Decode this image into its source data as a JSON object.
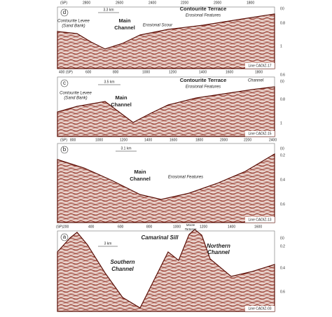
{
  "panels": [
    {
      "letter": "d",
      "top_axis": [
        "(SP)",
        "2800",
        "2600",
        "2400",
        "2200",
        "2000",
        "1800"
      ],
      "right_axis": [
        "(s)",
        "0.8",
        "1"
      ],
      "scale": "3.3 km",
      "line": "Line CADIZ-17",
      "title": "Contourite Terrace",
      "features": "Erosional Features",
      "levee": [
        "Contourite Levee",
        "(Sand Bank)"
      ],
      "channel": [
        "Main",
        "Channel"
      ],
      "scour": "Erosional Scour"
    },
    {
      "letter": "c",
      "top_axis": [
        "400 (SP)",
        "600",
        "800",
        "1000",
        "1200",
        "1400",
        "1600",
        "1800"
      ],
      "right_axis": [
        "0.6",
        "(s)",
        "0.8",
        "1"
      ],
      "scale": "3.5 km",
      "line": "Line CADIZ-15",
      "title": "Contourite Terrace",
      "features": "Erosional Features",
      "levee": [
        "Contourite Levee",
        "(Sand Bank)"
      ],
      "channel": [
        "Main",
        "Channel"
      ],
      "small_channel": "Channel"
    },
    {
      "letter": "b",
      "top_axis": [
        "(SP)",
        "800",
        "1000",
        "1200",
        "1400",
        "1600",
        "1800",
        "2000",
        "2200",
        "2400"
      ],
      "right_axis": [
        "(s)",
        "0.2",
        "0.4",
        "0.6"
      ],
      "scale": "3.1 km",
      "line": "Line CADIZ-13",
      "channel": [
        "Main",
        "Channel"
      ],
      "features": "Erosional Features"
    },
    {
      "letter": "a",
      "top_axis": [
        "(SP)200",
        "400",
        "600",
        "800",
        "1000",
        "1200",
        "1400",
        "1600"
      ],
      "right_axis": [
        "(s)",
        "0.2",
        "0.4",
        "0.6"
      ],
      "scale": "3 km",
      "line": "Line CADIZ-03",
      "title": "Camarinal Sill",
      "mount": [
        "Monte",
        "Tartesos"
      ],
      "north": [
        "Northern",
        "Channel"
      ],
      "south": [
        "Southern",
        "Channel"
      ]
    }
  ]
}
